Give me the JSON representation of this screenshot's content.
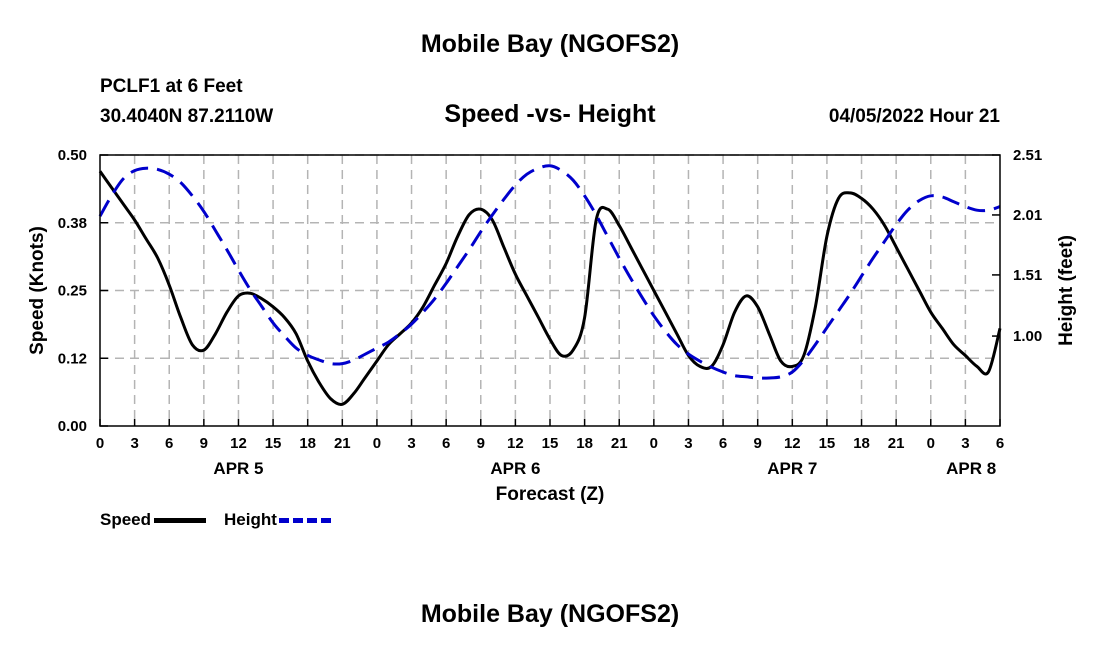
{
  "header": {
    "title_top": "Mobile Bay (NGOFS2)",
    "station": "PCLF1 at 6 Feet",
    "coords": "30.4040N  87.2110W",
    "subtitle": "Speed -vs- Height",
    "forecast_date": "04/05/2022 Hour 21",
    "title_bottom": "Mobile Bay (NGOFS2)"
  },
  "legend": {
    "speed_label": "Speed",
    "height_label": "Height"
  },
  "colors": {
    "speed": "#000000",
    "height": "#0000cc",
    "grid": "#b4b4b4"
  },
  "chart_data": {
    "type": "line",
    "title": "Speed -vs- Height",
    "xlabel": "Forecast (Z)",
    "ylabel_left": "Speed (Knots)",
    "ylabel_right": "Height (feet)",
    "xlim": [
      0,
      78
    ],
    "ylim_left": [
      0.0,
      0.5
    ],
    "ylim_right": [
      0.25,
      2.51
    ],
    "grid": true,
    "legend_position": "bottom-left",
    "x_ticks": [
      0,
      3,
      6,
      9,
      12,
      15,
      18,
      21,
      24,
      27,
      30,
      33,
      36,
      39,
      42,
      45,
      48,
      51,
      54,
      57,
      60,
      63,
      66,
      69,
      72,
      75,
      78
    ],
    "x_tick_labels": [
      "0",
      "3",
      "6",
      "9",
      "12",
      "15",
      "18",
      "21",
      "0",
      "3",
      "6",
      "9",
      "12",
      "15",
      "18",
      "21",
      "0",
      "3",
      "6",
      "9",
      "12",
      "15",
      "18",
      "21",
      "0",
      "3",
      "6"
    ],
    "y_left_ticks": [
      0.0,
      0.125,
      0.25,
      0.375,
      0.5
    ],
    "y_left_tick_labels": [
      "0.00",
      "0.12",
      "0.25",
      "0.38",
      "0.50"
    ],
    "y_right_ticks": [
      1.0,
      1.51,
      2.01,
      2.51
    ],
    "y_right_tick_labels": [
      "1.00",
      "1.51",
      "2.01",
      "2.51"
    ],
    "date_labels": [
      {
        "x": 12,
        "label": "APR 5"
      },
      {
        "x": 36,
        "label": "APR 6"
      },
      {
        "x": 60,
        "label": "APR 7"
      },
      {
        "x": 75.5,
        "label": "APR 8"
      }
    ],
    "series": [
      {
        "name": "Speed",
        "axis": "left",
        "x": [
          0,
          1,
          2,
          3,
          4,
          5,
          6,
          7,
          8,
          9,
          10,
          11,
          12,
          13,
          14,
          15,
          16,
          17,
          18,
          19,
          20,
          21,
          22,
          23,
          24,
          25,
          26,
          27,
          28,
          29,
          30,
          31,
          32,
          33,
          34,
          35,
          36,
          37,
          38,
          39,
          40,
          41,
          42,
          43,
          44,
          45,
          46,
          47,
          48,
          49,
          50,
          51,
          52,
          53,
          54,
          55,
          56,
          57,
          58,
          59,
          60,
          61,
          62,
          63,
          64,
          65,
          66,
          67,
          68,
          69,
          70,
          71,
          72,
          73,
          74,
          75,
          76,
          77,
          78
        ],
        "values": [
          0.47,
          0.44,
          0.41,
          0.38,
          0.345,
          0.31,
          0.26,
          0.2,
          0.15,
          0.14,
          0.17,
          0.21,
          0.24,
          0.245,
          0.235,
          0.22,
          0.2,
          0.17,
          0.12,
          0.08,
          0.05,
          0.04,
          0.06,
          0.09,
          0.12,
          0.15,
          0.17,
          0.19,
          0.22,
          0.26,
          0.3,
          0.35,
          0.39,
          0.4,
          0.38,
          0.33,
          0.28,
          0.24,
          0.2,
          0.16,
          0.13,
          0.14,
          0.2,
          0.38,
          0.4,
          0.37,
          0.33,
          0.29,
          0.25,
          0.21,
          0.17,
          0.13,
          0.11,
          0.11,
          0.15,
          0.21,
          0.24,
          0.22,
          0.17,
          0.12,
          0.11,
          0.13,
          0.22,
          0.35,
          0.42,
          0.43,
          0.42,
          0.4,
          0.37,
          0.33,
          0.29,
          0.25,
          0.21,
          0.18,
          0.15,
          0.13,
          0.11,
          0.1,
          0.18
        ]
      },
      {
        "name": "Height",
        "axis": "right",
        "x": [
          0,
          1,
          2,
          3,
          4,
          5,
          6,
          7,
          8,
          9,
          10,
          11,
          12,
          13,
          14,
          15,
          16,
          17,
          18,
          19,
          20,
          21,
          22,
          23,
          24,
          25,
          26,
          27,
          28,
          29,
          30,
          31,
          32,
          33,
          34,
          35,
          36,
          37,
          38,
          39,
          40,
          41,
          42,
          43,
          44,
          45,
          46,
          47,
          48,
          49,
          50,
          51,
          52,
          53,
          54,
          55,
          56,
          57,
          58,
          59,
          60,
          61,
          62,
          63,
          64,
          65,
          66,
          67,
          68,
          69,
          70,
          71,
          72,
          73,
          74,
          75,
          76,
          77,
          78
        ],
        "values": [
          2.0,
          2.17,
          2.31,
          2.38,
          2.4,
          2.39,
          2.35,
          2.28,
          2.17,
          2.04,
          1.88,
          1.72,
          1.55,
          1.39,
          1.25,
          1.11,
          1.0,
          0.9,
          0.84,
          0.8,
          0.77,
          0.77,
          0.8,
          0.85,
          0.9,
          0.95,
          1.02,
          1.1,
          1.2,
          1.31,
          1.44,
          1.58,
          1.72,
          1.87,
          2.01,
          2.14,
          2.26,
          2.35,
          2.4,
          2.42,
          2.38,
          2.3,
          2.17,
          2.01,
          1.83,
          1.65,
          1.48,
          1.32,
          1.17,
          1.04,
          0.93,
          0.85,
          0.79,
          0.74,
          0.7,
          0.67,
          0.66,
          0.65,
          0.65,
          0.66,
          0.7,
          0.8,
          0.93,
          1.07,
          1.21,
          1.35,
          1.5,
          1.65,
          1.79,
          1.93,
          2.05,
          2.13,
          2.17,
          2.16,
          2.12,
          2.08,
          2.05,
          2.05,
          2.08
        ]
      }
    ]
  }
}
